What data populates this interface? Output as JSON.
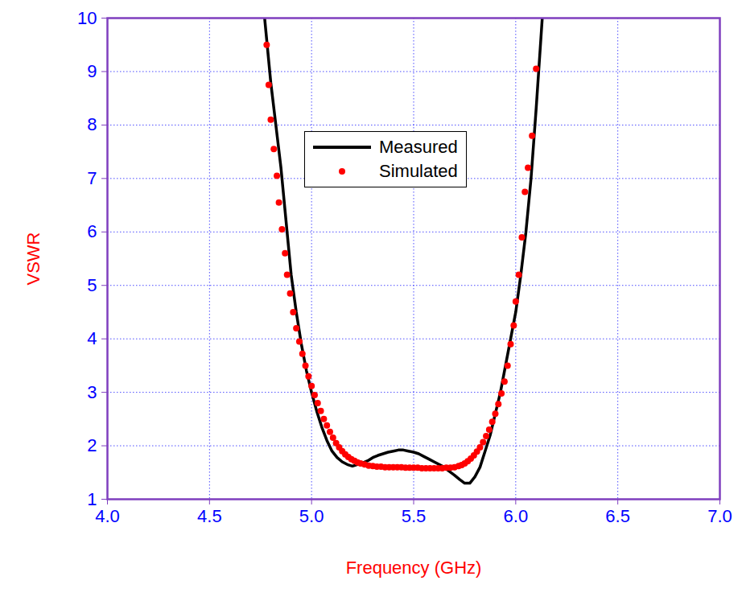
{
  "chart_data": {
    "type": "line",
    "x_label": "Frequency (GHz)",
    "y_label": "VSWR",
    "xlim": [
      4,
      7
    ],
    "xticks": [
      {
        "value": 4,
        "label": "4.0"
      },
      {
        "value": 4.5,
        "label": "4.5"
      },
      {
        "value": 5,
        "label": "5.0"
      },
      {
        "value": 5.5,
        "label": "5.5"
      },
      {
        "value": 6,
        "label": "6.0"
      },
      {
        "value": 6.5,
        "label": "6.5"
      },
      {
        "value": 7,
        "label": "7.0"
      }
    ],
    "ylim": [
      1,
      10
    ],
    "yticks": [
      1,
      2,
      3,
      4,
      5,
      6,
      7,
      8,
      9,
      10
    ],
    "grid": true,
    "legend": "top",
    "series": [
      {
        "name": "Measured",
        "type": "line",
        "line_style": "solid",
        "color": "#000000",
        "x": [
          4.77,
          4.8,
          4.825,
          4.85,
          4.875,
          4.9,
          4.925,
          4.95,
          4.975,
          5.0,
          5.025,
          5.05,
          5.075,
          5.1,
          5.125,
          5.15,
          5.175,
          5.2,
          5.225,
          5.25,
          5.275,
          5.3,
          5.325,
          5.35,
          5.375,
          5.4,
          5.425,
          5.45,
          5.475,
          5.5,
          5.525,
          5.55,
          5.575,
          5.6,
          5.625,
          5.65,
          5.675,
          5.7,
          5.725,
          5.75,
          5.775,
          5.8,
          5.825,
          5.85,
          5.875,
          5.9,
          5.925,
          5.95,
          5.975,
          6.0,
          6.025,
          6.05,
          6.075,
          6.1,
          6.13
        ],
        "values": [
          10,
          8.8,
          8.0,
          7.2,
          6.2,
          5.2,
          4.5,
          3.9,
          3.4,
          3.0,
          2.65,
          2.35,
          2.1,
          1.9,
          1.78,
          1.7,
          1.65,
          1.62,
          1.65,
          1.68,
          1.72,
          1.78,
          1.82,
          1.85,
          1.88,
          1.9,
          1.92,
          1.92,
          1.9,
          1.88,
          1.85,
          1.8,
          1.75,
          1.7,
          1.65,
          1.6,
          1.52,
          1.45,
          1.37,
          1.3,
          1.3,
          1.42,
          1.6,
          1.9,
          2.2,
          2.6,
          3.0,
          3.5,
          4.0,
          4.5,
          5.2,
          6.0,
          7.0,
          8.3,
          10
        ]
      },
      {
        "name": "Simulated",
        "type": "scatter",
        "marker": "circle",
        "color": "#ff0000",
        "x": [
          4.78,
          4.79,
          4.8,
          4.815,
          4.83,
          4.84,
          4.855,
          4.87,
          4.88,
          4.895,
          4.91,
          4.925,
          4.94,
          4.955,
          4.97,
          4.985,
          5.0,
          5.015,
          5.03,
          5.045,
          5.06,
          5.075,
          5.09,
          5.105,
          5.12,
          5.135,
          5.15,
          5.165,
          5.18,
          5.195,
          5.21,
          5.225,
          5.24,
          5.26,
          5.28,
          5.3,
          5.32,
          5.34,
          5.36,
          5.38,
          5.4,
          5.42,
          5.44,
          5.46,
          5.48,
          5.5,
          5.52,
          5.54,
          5.56,
          5.58,
          5.6,
          5.62,
          5.64,
          5.66,
          5.68,
          5.7,
          5.72,
          5.735,
          5.75,
          5.765,
          5.78,
          5.795,
          5.81,
          5.825,
          5.84,
          5.855,
          5.87,
          5.885,
          5.9,
          5.915,
          5.93,
          5.945,
          5.96,
          5.975,
          5.99,
          6.0,
          6.015,
          6.03,
          6.045,
          6.06,
          6.08,
          6.1
        ],
        "values": [
          9.5,
          8.75,
          8.1,
          7.55,
          7.05,
          6.55,
          6.05,
          5.6,
          5.2,
          4.85,
          4.5,
          4.2,
          3.95,
          3.72,
          3.5,
          3.3,
          3.12,
          2.95,
          2.8,
          2.65,
          2.5,
          2.38,
          2.26,
          2.15,
          2.05,
          1.97,
          1.9,
          1.84,
          1.79,
          1.75,
          1.72,
          1.69,
          1.67,
          1.65,
          1.63,
          1.62,
          1.61,
          1.61,
          1.6,
          1.6,
          1.6,
          1.6,
          1.6,
          1.59,
          1.59,
          1.59,
          1.59,
          1.58,
          1.58,
          1.58,
          1.58,
          1.58,
          1.58,
          1.59,
          1.59,
          1.6,
          1.62,
          1.64,
          1.67,
          1.71,
          1.76,
          1.82,
          1.89,
          1.97,
          2.07,
          2.18,
          2.3,
          2.45,
          2.6,
          2.78,
          2.98,
          3.2,
          3.5,
          3.9,
          4.25,
          4.7,
          5.2,
          5.9,
          6.75,
          7.2,
          7.8,
          9.05
        ]
      }
    ]
  }
}
